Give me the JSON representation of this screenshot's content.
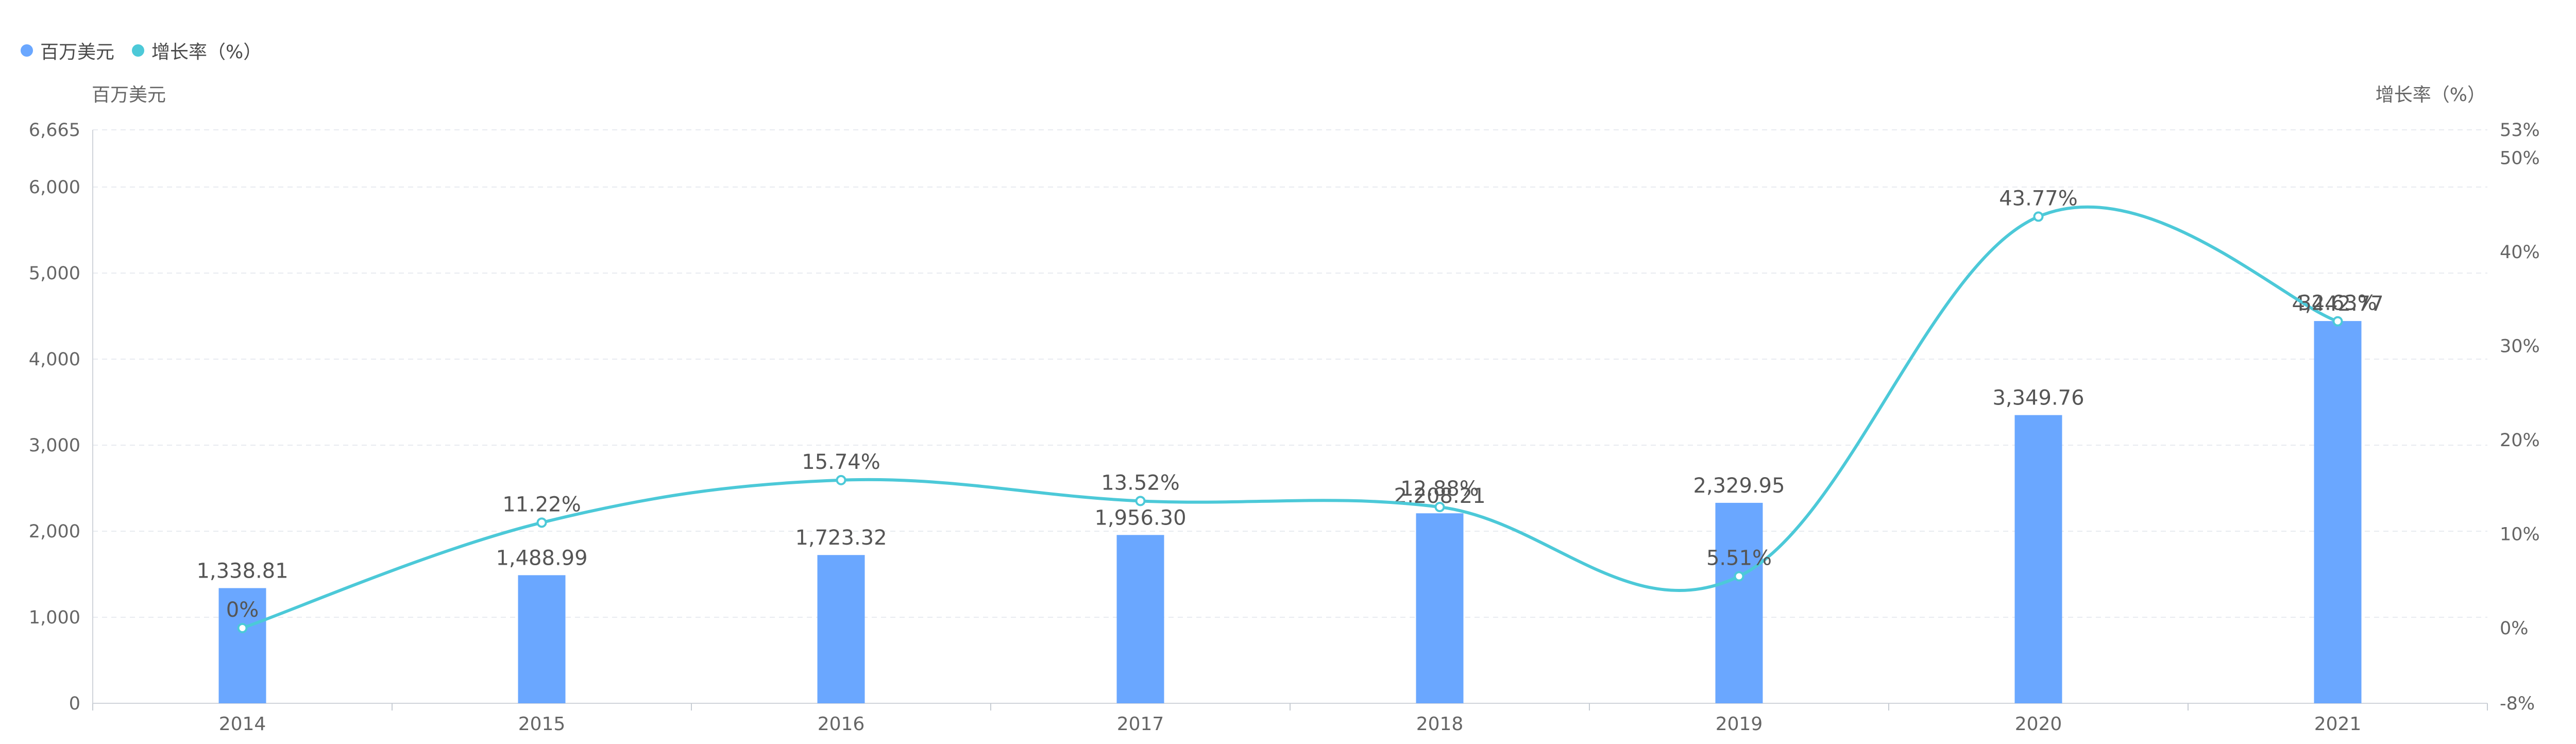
{
  "legend": {
    "items": [
      {
        "label": "百万美元",
        "color": "#6aa7ff"
      },
      {
        "label": "增长率（%）",
        "color": "#4cc9d8"
      }
    ]
  },
  "axes": {
    "left_title": "百万美元",
    "right_title": "增长率（%）"
  },
  "chart_data": {
    "type": "bar",
    "categories": [
      "2014",
      "2015",
      "2016",
      "2017",
      "2018",
      "2019",
      "2020",
      "2021"
    ],
    "series": [
      {
        "name": "百万美元",
        "type": "bar",
        "color": "#6aa7ff",
        "values": [
          1338.81,
          1488.99,
          1723.32,
          1956.3,
          2208.21,
          2329.95,
          3349.76,
          4442.77
        ],
        "labels": [
          "1,338.81",
          "1,488.99",
          "1,723.32",
          "1,956.30",
          "2,208.21",
          "2,329.95",
          "3,349.76",
          "4,442.77"
        ]
      },
      {
        "name": "增长率（%）",
        "type": "line",
        "color": "#4cc9d8",
        "values": [
          0,
          11.22,
          15.74,
          13.52,
          12.88,
          5.51,
          43.77,
          32.63
        ],
        "labels": [
          "0%",
          "11.22%",
          "15.74%",
          "13.52%",
          "12.88%",
          "5.51%",
          "43.77%",
          "32.63%"
        ]
      }
    ],
    "ylim": [
      0,
      6665
    ],
    "y2lim": [
      -8,
      53
    ],
    "left_ticks": [
      {
        "value": 0,
        "label": "0"
      },
      {
        "value": 1000,
        "label": "1,000"
      },
      {
        "value": 2000,
        "label": "2,000"
      },
      {
        "value": 3000,
        "label": "3,000"
      },
      {
        "value": 4000,
        "label": "4,000"
      },
      {
        "value": 5000,
        "label": "5,000"
      },
      {
        "value": 6000,
        "label": "6,000"
      },
      {
        "value": 6665,
        "label": "6,665"
      }
    ],
    "right_ticks": [
      {
        "value": -8,
        "label": "-8%"
      },
      {
        "value": 0,
        "label": "0%"
      },
      {
        "value": 10,
        "label": "10%"
      },
      {
        "value": 20,
        "label": "20%"
      },
      {
        "value": 30,
        "label": "30%"
      },
      {
        "value": 40,
        "label": "40%"
      },
      {
        "value": 50,
        "label": "50%"
      },
      {
        "value": 53,
        "label": "53%"
      }
    ],
    "grid": true,
    "legend_position": "top-left"
  }
}
